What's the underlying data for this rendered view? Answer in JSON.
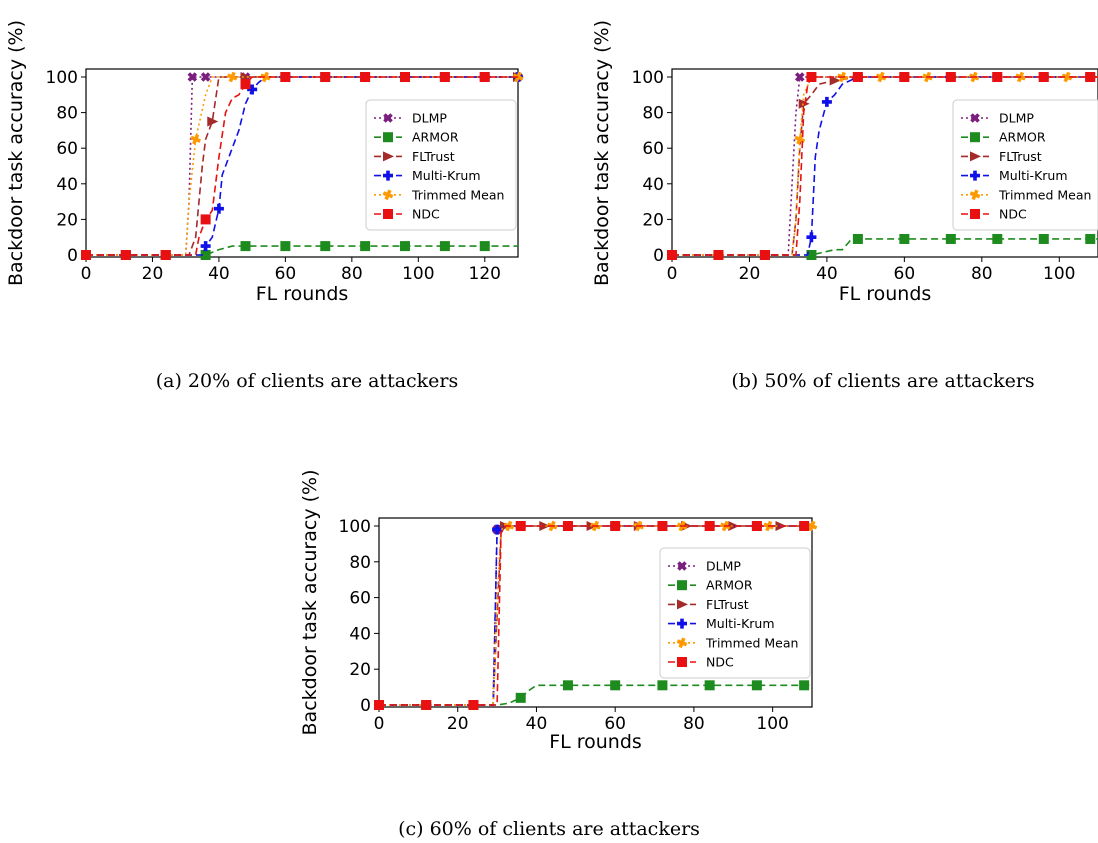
{
  "colors": {
    "DLMP": "#7b1f7f",
    "ARMOR": "#1e8b1e",
    "FLTrust": "#a52a2a",
    "Multi-Krum": "#1010e8",
    "Trimmed Mean": "#ff9900",
    "NDC": "#e81010"
  },
  "chart_data": [
    {
      "type": "line",
      "caption": "(a) 20% of clients are attackers",
      "xlabel": "FL rounds",
      "ylabel": "Backdoor task accuracy (%)",
      "xlim": [
        0,
        130
      ],
      "ylim": [
        0,
        100
      ],
      "xticks": [
        0,
        20,
        40,
        60,
        80,
        100,
        120
      ],
      "yticks": [
        0,
        20,
        40,
        60,
        80,
        100
      ],
      "legend": "right",
      "series": [
        {
          "name": "DLMP",
          "style": "dotted",
          "marker": "X",
          "x": [
            0,
            12,
            24,
            30,
            31,
            32,
            36,
            48,
            60,
            72,
            84,
            96,
            108,
            120,
            130
          ],
          "y": [
            0,
            0,
            0,
            0,
            30,
            100,
            100,
            100,
            100,
            100,
            100,
            100,
            100,
            100,
            100
          ],
          "markers_x": [
            0,
            12,
            24,
            32,
            36,
            48,
            60,
            72,
            84,
            96,
            108,
            120,
            130
          ]
        },
        {
          "name": "ARMOR",
          "style": "dashed",
          "marker": "s",
          "x": [
            0,
            12,
            24,
            36,
            40,
            44,
            48,
            60,
            72,
            84,
            96,
            108,
            120,
            130
          ],
          "y": [
            0,
            0,
            0,
            0,
            3,
            5,
            5,
            5,
            5,
            5,
            5,
            5,
            5,
            5
          ],
          "markers_x": [
            0,
            12,
            24,
            36,
            48,
            60,
            72,
            84,
            96,
            108,
            120
          ]
        },
        {
          "name": "FLTrust",
          "style": "dashed",
          "marker": ">",
          "x": [
            0,
            12,
            24,
            31,
            33,
            35,
            36,
            38,
            40,
            48,
            60,
            72,
            84,
            96,
            108,
            120,
            130
          ],
          "y": [
            0,
            0,
            0,
            0,
            10,
            50,
            65,
            75,
            100,
            100,
            100,
            100,
            100,
            100,
            100,
            100,
            100
          ],
          "markers_x": [
            0,
            12,
            24,
            38,
            48,
            60,
            72,
            84,
            96,
            108,
            120,
            130
          ]
        },
        {
          "name": "Multi-Krum",
          "style": "dashed",
          "marker": "P",
          "x": [
            0,
            12,
            24,
            35,
            36,
            38,
            40,
            41,
            44,
            46,
            48,
            50,
            52,
            54,
            60,
            72,
            84,
            96,
            108,
            120,
            130
          ],
          "y": [
            0,
            0,
            0,
            0,
            5,
            10,
            26,
            45,
            60,
            70,
            85,
            93,
            97,
            100,
            100,
            100,
            100,
            100,
            100,
            100,
            100
          ],
          "markers_x": [
            0,
            12,
            24,
            36,
            40,
            50,
            60,
            72,
            84,
            96,
            108,
            120,
            130
          ]
        },
        {
          "name": "Trimmed Mean",
          "style": "dotted",
          "marker": "o",
          "x": [
            0,
            12,
            24,
            30,
            31,
            33,
            36,
            38,
            42,
            48,
            60,
            72,
            84,
            96,
            108,
            120,
            130
          ],
          "y": [
            0,
            0,
            0,
            0,
            30,
            65,
            90,
            100,
            100,
            100,
            100,
            100,
            100,
            100,
            100,
            100,
            100
          ],
          "markers_x": [
            0,
            12,
            24,
            33,
            44,
            54,
            60,
            72,
            84,
            96,
            108,
            120,
            130
          ]
        },
        {
          "name": "NDC",
          "style": "dashed",
          "marker": "s",
          "x": [
            0,
            12,
            24,
            33,
            34,
            36,
            38,
            40,
            42,
            44,
            46,
            48,
            50,
            60,
            72,
            84,
            96,
            108,
            120,
            130
          ],
          "y": [
            0,
            0,
            0,
            0,
            10,
            20,
            25,
            55,
            80,
            88,
            90,
            96,
            100,
            100,
            100,
            100,
            100,
            100,
            100,
            100
          ],
          "markers_x": [
            0,
            12,
            24,
            36,
            48,
            60,
            72,
            84,
            96,
            108,
            120
          ]
        }
      ]
    },
    {
      "type": "line",
      "caption": "(b) 50% of clients are attackers",
      "xlabel": "FL rounds",
      "ylabel": "Backdoor task accuracy (%)",
      "xlim": [
        0,
        110
      ],
      "ylim": [
        0,
        100
      ],
      "xticks": [
        0,
        20,
        40,
        60,
        80,
        100
      ],
      "yticks": [
        0,
        20,
        40,
        60,
        80,
        100
      ],
      "legend": "right",
      "series": [
        {
          "name": "DLMP",
          "style": "dotted",
          "marker": "X",
          "x": [
            0,
            12,
            24,
            30,
            31,
            32,
            33,
            36,
            48,
            60,
            72,
            84,
            96,
            108,
            110
          ],
          "y": [
            0,
            0,
            0,
            0,
            40,
            80,
            100,
            100,
            100,
            100,
            100,
            100,
            100,
            100,
            100
          ],
          "markers_x": [
            0,
            12,
            24,
            33,
            36,
            48,
            60,
            72,
            84,
            96,
            108
          ]
        },
        {
          "name": "ARMOR",
          "style": "dashed",
          "marker": "s",
          "x": [
            0,
            12,
            24,
            36,
            40,
            42,
            44,
            46,
            48,
            60,
            72,
            84,
            96,
            108,
            110
          ],
          "y": [
            0,
            0,
            0,
            0,
            2,
            3,
            3,
            8,
            9,
            9,
            9,
            9,
            9,
            9,
            9
          ],
          "markers_x": [
            0,
            12,
            24,
            36,
            48,
            60,
            72,
            84,
            96,
            108
          ]
        },
        {
          "name": "FLTrust",
          "style": "dashed",
          "marker": ">",
          "x": [
            0,
            12,
            24,
            31,
            32,
            33,
            34,
            36,
            38,
            42,
            48,
            60,
            72,
            84,
            96,
            108,
            110
          ],
          "y": [
            0,
            0,
            0,
            0,
            20,
            60,
            85,
            90,
            96,
            98,
            100,
            100,
            100,
            100,
            100,
            100,
            100
          ],
          "markers_x": [
            0,
            12,
            24,
            34,
            42,
            48,
            60,
            72,
            84,
            96,
            108
          ]
        },
        {
          "name": "Multi-Krum",
          "style": "dashed",
          "marker": "P",
          "x": [
            0,
            12,
            24,
            35,
            36,
            37,
            38,
            40,
            42,
            44,
            48,
            60,
            72,
            84,
            96,
            108,
            110
          ],
          "y": [
            0,
            0,
            0,
            0,
            10,
            55,
            70,
            86,
            90,
            96,
            100,
            100,
            100,
            100,
            100,
            100,
            100
          ],
          "markers_x": [
            0,
            12,
            24,
            36,
            40,
            48,
            60,
            72,
            84,
            96,
            108
          ]
        },
        {
          "name": "Trimmed Mean",
          "style": "dotted",
          "marker": "o",
          "x": [
            0,
            12,
            24,
            31,
            32,
            33,
            34,
            36,
            44,
            48,
            60,
            72,
            84,
            96,
            108,
            110
          ],
          "y": [
            0,
            0,
            0,
            0,
            20,
            65,
            90,
            100,
            100,
            100,
            100,
            100,
            100,
            100,
            100,
            100
          ],
          "markers_x": [
            0,
            12,
            24,
            33,
            44,
            54,
            66,
            78,
            90,
            102
          ]
        },
        {
          "name": "NDC",
          "style": "dashed",
          "marker": "s",
          "x": [
            0,
            12,
            24,
            32,
            33,
            34,
            35,
            36,
            48,
            60,
            72,
            84,
            96,
            108,
            110
          ],
          "y": [
            0,
            0,
            0,
            0,
            30,
            80,
            95,
            100,
            100,
            100,
            100,
            100,
            100,
            100,
            100
          ],
          "markers_x": [
            0,
            12,
            24,
            36,
            48,
            60,
            72,
            84,
            96,
            108
          ]
        }
      ]
    },
    {
      "type": "line",
      "caption": "(c) 60% of clients are attackers",
      "xlabel": "FL rounds",
      "ylabel": "Backdoor task accuracy (%)",
      "xlim": [
        0,
        110
      ],
      "ylim": [
        0,
        100
      ],
      "xticks": [
        0,
        20,
        40,
        60,
        80,
        100
      ],
      "yticks": [
        0,
        20,
        40,
        60,
        80,
        100
      ],
      "legend": "right",
      "series": [
        {
          "name": "DLMP",
          "style": "dotted",
          "marker": "X",
          "x": [
            0,
            12,
            24,
            29,
            30,
            31,
            36,
            48,
            60,
            72,
            84,
            96,
            108,
            110
          ],
          "y": [
            0,
            0,
            0,
            0,
            98,
            100,
            100,
            100,
            100,
            100,
            100,
            100,
            100,
            100
          ],
          "markers_x": [
            0,
            12,
            24,
            30,
            36,
            48,
            60,
            72,
            84,
            96,
            108
          ]
        },
        {
          "name": "ARMOR",
          "style": "dashed",
          "marker": "s",
          "x": [
            0,
            12,
            24,
            30,
            33,
            36,
            38,
            40,
            48,
            60,
            72,
            84,
            96,
            108,
            110
          ],
          "y": [
            0,
            0,
            0,
            0,
            1,
            4,
            8,
            11,
            11,
            11,
            11,
            11,
            11,
            11,
            11
          ],
          "markers_x": [
            0,
            12,
            24,
            36,
            48,
            60,
            72,
            84,
            96,
            108
          ]
        },
        {
          "name": "FLTrust",
          "style": "dashed",
          "marker": ">",
          "x": [
            0,
            12,
            24,
            29,
            30,
            31,
            32,
            36,
            48,
            60,
            72,
            84,
            96,
            108,
            110
          ],
          "y": [
            0,
            0,
            0,
            0,
            50,
            96,
            100,
            100,
            100,
            100,
            100,
            100,
            100,
            100,
            100
          ],
          "markers_x": [
            0,
            12,
            24,
            32,
            42,
            54,
            66,
            78,
            90,
            102
          ]
        },
        {
          "name": "Multi-Krum",
          "style": "dashed",
          "marker": "P",
          "x": [
            0,
            12,
            24,
            29,
            30,
            31,
            36,
            48,
            60,
            72,
            84,
            96,
            108,
            110
          ],
          "y": [
            0,
            0,
            0,
            0,
            98,
            100,
            100,
            100,
            100,
            100,
            100,
            100,
            100,
            100
          ],
          "markers_x": [
            0,
            12,
            24,
            30,
            36,
            48,
            60,
            72,
            84,
            96,
            108
          ]
        },
        {
          "name": "Trimmed Mean",
          "style": "dotted",
          "marker": "o",
          "x": [
            0,
            12,
            24,
            29,
            30,
            31,
            33,
            44,
            55,
            66,
            77,
            88,
            99,
            110
          ],
          "y": [
            0,
            0,
            0,
            0,
            60,
            98,
            100,
            100,
            100,
            100,
            100,
            100,
            100,
            100
          ],
          "markers_x": [
            0,
            12,
            24,
            33,
            44,
            55,
            66,
            77,
            88,
            99,
            110
          ]
        },
        {
          "name": "NDC",
          "style": "dashed",
          "marker": "s",
          "x": [
            0,
            12,
            24,
            30,
            31,
            32,
            36,
            48,
            60,
            72,
            84,
            96,
            108,
            110
          ],
          "y": [
            0,
            0,
            0,
            0,
            96,
            100,
            100,
            100,
            100,
            100,
            100,
            100,
            100,
            100
          ],
          "markers_x": [
            0,
            12,
            24,
            36,
            48,
            60,
            72,
            84,
            96,
            108
          ]
        }
      ]
    }
  ]
}
